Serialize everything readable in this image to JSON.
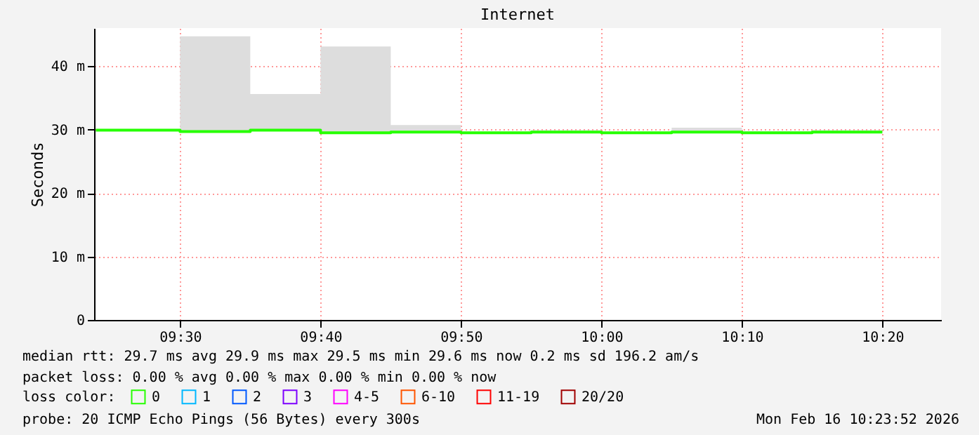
{
  "chart_data": {
    "type": "step",
    "title": "Internet",
    "ylabel": "Seconds",
    "legend_title": "loss color:",
    "legend": "bottom",
    "grid": true,
    "marker": "none",
    "x": [
      9.4,
      9.5,
      9.5833,
      9.6667,
      9.75,
      9.8333,
      9.9167,
      10.0,
      10.0833,
      10.1667,
      10.25,
      10.3333
    ],
    "xlim": [
      9.398,
      10.403
    ],
    "xticks": [
      {
        "value": 9.5,
        "label": "09:30"
      },
      {
        "value": 9.6667,
        "label": "09:40"
      },
      {
        "value": 9.8333,
        "label": "09:50"
      },
      {
        "value": 10.0,
        "label": "10:00"
      },
      {
        "value": 10.1667,
        "label": "10:10"
      },
      {
        "value": 10.3333,
        "label": "10:20"
      }
    ],
    "ylim": [
      0,
      46
    ],
    "yticks": [
      0,
      {
        "value": 10,
        "label": "10 m"
      },
      {
        "value": 20,
        "label": "20 m"
      },
      {
        "value": 30,
        "label": "30 m"
      },
      {
        "value": 40,
        "label": "40 m"
      }
    ],
    "series": [
      {
        "type": "area",
        "color": "#dddddd",
        "values": [
          null,
          44.7,
          35.6,
          43.1,
          30.7,
          29.6,
          29.9,
          29.6,
          30.3,
          29.7,
          29.9,
          29.9
        ]
      },
      {
        "name": "0",
        "color": "#26ff00",
        "values": [
          29.9,
          29.7,
          29.9,
          29.5,
          29.6,
          29.5,
          29.6,
          29.5,
          29.6,
          29.5,
          29.6,
          29.6
        ]
      },
      {
        "name": "1",
        "color": "#00b8ff",
        "values": [
          null,
          null,
          null,
          null,
          null,
          null,
          null,
          null,
          null,
          null,
          null,
          null
        ]
      },
      {
        "name": "2",
        "color": "#0059ff",
        "values": [
          null,
          null,
          null,
          null,
          null,
          null,
          null,
          null,
          null,
          null,
          null,
          null
        ]
      },
      {
        "name": "3",
        "color": "#7e00ff",
        "values": [
          null,
          null,
          null,
          null,
          null,
          null,
          null,
          null,
          null,
          null,
          null,
          null
        ]
      },
      {
        "name": "4-5",
        "color": "#ff00ff",
        "values": [
          null,
          null,
          null,
          null,
          null,
          null,
          null,
          null,
          null,
          null,
          null,
          null
        ]
      },
      {
        "name": "6-10",
        "color": "#ff5500",
        "values": [
          null,
          null,
          null,
          null,
          null,
          null,
          null,
          null,
          null,
          null,
          null,
          null
        ]
      },
      {
        "name": "11-19",
        "color": "#ff0000",
        "values": [
          null,
          null,
          null,
          null,
          null,
          null,
          null,
          null,
          null,
          null,
          null,
          null
        ]
      },
      {
        "name": "20/20",
        "color": "#a10000",
        "values": [
          null,
          null,
          null,
          null,
          null,
          null,
          null,
          null,
          null,
          null,
          null,
          null
        ]
      }
    ],
    "annotations": [
      "median rtt: 29.7 ms avg 29.9 ms max 29.5 ms min 29.6 ms now 0.2 ms sd 196.2 am/s",
      "packet loss: 0.00 % avg 0.00 % max 0.00 % min 0.00 % now",
      "probe: 20 ICMP Echo Pings (56 Bytes) every 300s",
      "Mon Feb 16 10:23:52 2026"
    ]
  }
}
